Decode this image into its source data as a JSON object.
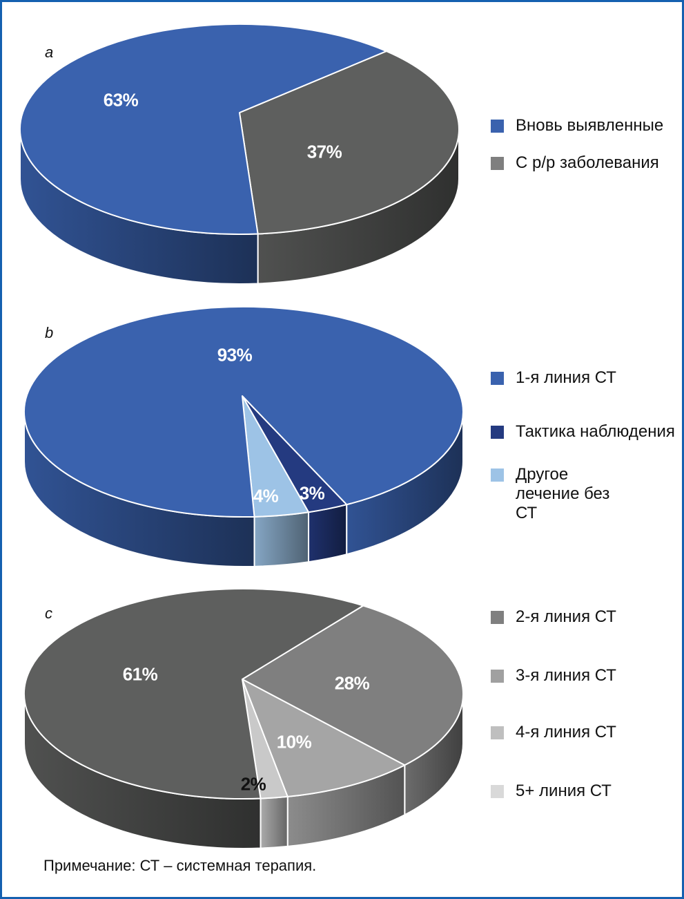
{
  "chart_data": [
    {
      "type": "pie",
      "panel": "a",
      "legend_position": "right",
      "slices": [
        {
          "name": "С р/р заболевания",
          "value": 37,
          "label": "37%",
          "color": "#5E5F5E",
          "legend_color": "#7F7F7F"
        },
        {
          "name": "Вновь выявленные",
          "value": 63,
          "label": "63%",
          "color": "#3A62AE",
          "legend_color": "#3A62AE"
        }
      ],
      "legend": [
        "Вновь выявленные",
        "С р/р заболевания"
      ]
    },
    {
      "type": "pie",
      "panel": "b",
      "legend_position": "right",
      "slices": [
        {
          "name": "Тактика наблюдения",
          "value": 3,
          "label": "3%",
          "color": "#243A80",
          "legend_color": "#243A80"
        },
        {
          "name": "Другое лечение без СТ",
          "value": 4,
          "label": "4%",
          "color": "#9DC3E6",
          "legend_color": "#9DC3E6"
        },
        {
          "name": "1-я линия СТ",
          "value": 93,
          "label": "93%",
          "color": "#3A62AE",
          "legend_color": "#3A62AE"
        }
      ],
      "legend": [
        "1-я линия СТ",
        "Тактика наблюдения",
        "Другое лечение без СТ"
      ]
    },
    {
      "type": "pie",
      "panel": "c",
      "legend_position": "right",
      "slices": [
        {
          "name": "3-я линия СТ",
          "value": 28,
          "label": "28%",
          "color": "#7F7F7F",
          "legend_color": "#A0A0A0"
        },
        {
          "name": "4-я линия СТ",
          "value": 10,
          "label": "10%",
          "color": "#A5A5A5",
          "legend_color": "#BFBFBF"
        },
        {
          "name": "5+ линия СТ",
          "value": 2,
          "label": "2%",
          "color": "#C9C9C9",
          "legend_color": "#D9D9D9"
        },
        {
          "name": "2-я линия СТ",
          "value": 61,
          "label": "61%",
          "color": "#5E5F5E",
          "legend_color": "#7F7F7F"
        }
      ],
      "legend": [
        "2-я линия СТ",
        "3-я линия СТ",
        "4-я линия СТ",
        "5+ линия СТ"
      ]
    }
  ],
  "note": "Примечание: СТ – системная терапия.",
  "frame_color": "#1560B0"
}
